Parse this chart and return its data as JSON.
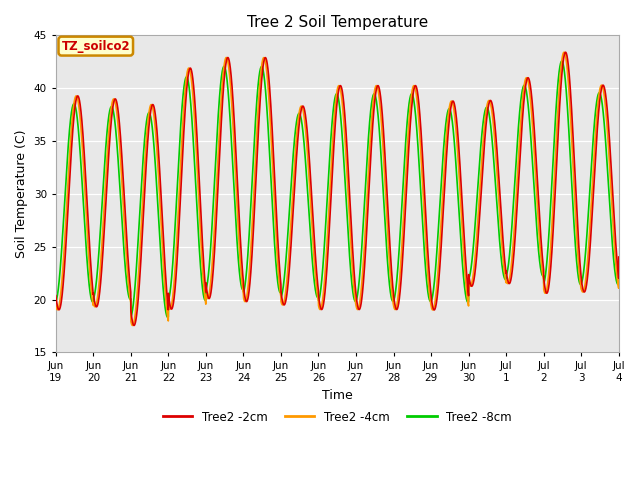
{
  "title": "Tree 2 Soil Temperature",
  "xlabel": "Time",
  "ylabel": "Soil Temperature (C)",
  "ylim": [
    15,
    45
  ],
  "yticks": [
    15,
    20,
    25,
    30,
    35,
    40,
    45
  ],
  "bg_color": "#e8e8e8",
  "line_colors": [
    "#dd0000",
    "#ff9900",
    "#00cc00"
  ],
  "line_labels": [
    "Tree2 -2cm",
    "Tree2 -4cm",
    "Tree2 -8cm"
  ],
  "annotation_text": "TZ_soilco2",
  "annotation_bg": "#ffffcc",
  "annotation_border": "#cc8800",
  "x_tick_labels": [
    "Jun\n19",
    "Jun\n20",
    "Jun\n21",
    "Jun\n22",
    "Jun\n23",
    "Jun\n24",
    "Jun\n25",
    "Jun\n26",
    "Jun\n27",
    "Jun\n28",
    "Jun\n29",
    "Jun\n30",
    "Jul\n1",
    "Jul\n2",
    "Jul\n3",
    "Jul\n4"
  ],
  "num_days": 16,
  "ppd": 288,
  "base_min": 19.0,
  "base_max": 40.0,
  "day_peaks": [
    39.8,
    39.5,
    39.0,
    42.5,
    43.5,
    43.5,
    38.8,
    40.8,
    40.8,
    40.8,
    39.3,
    39.3,
    41.5,
    44.0,
    40.8,
    40.8
  ],
  "day_mins": [
    18.5,
    18.8,
    17.0,
    18.5,
    19.5,
    19.2,
    19.0,
    18.5,
    18.5,
    18.5,
    18.5,
    20.8,
    21.0,
    20.0,
    20.2,
    22.5
  ],
  "phase_2cm": 0.0,
  "phase_4cm": 0.04,
  "phase_8cm": 0.1,
  "damp_4cm": 0.95,
  "damp_8cm": 0.88
}
